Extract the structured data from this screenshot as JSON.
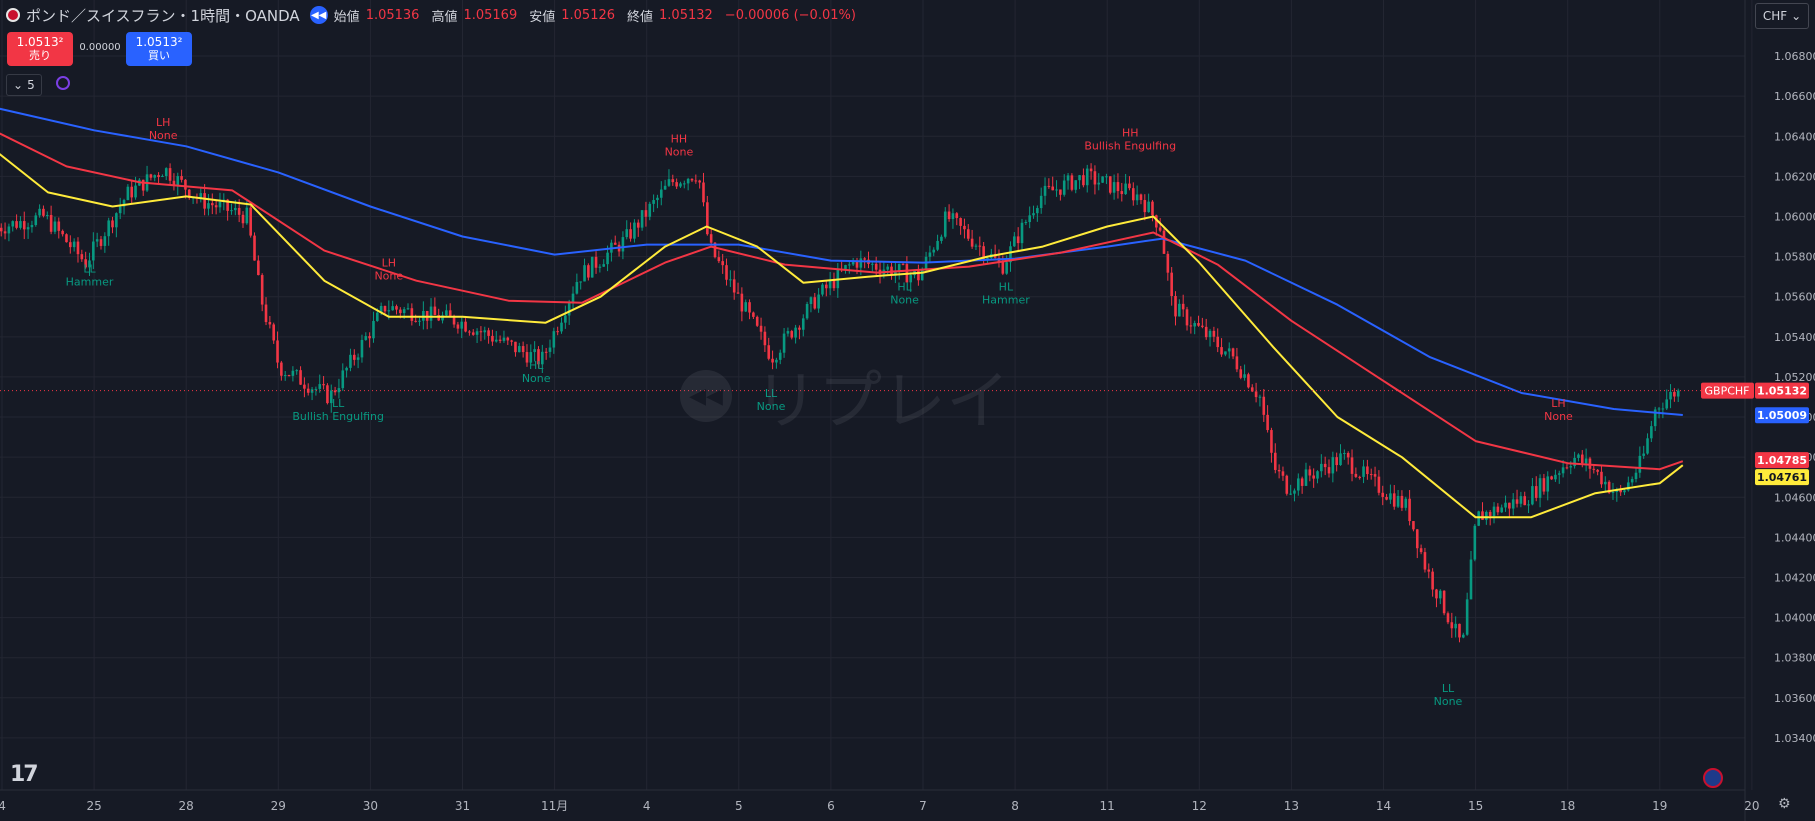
{
  "header": {
    "symbol_title": "ポンド／スイスフラン・1時間・OANDA",
    "open_label": "始値",
    "open": "1.05136",
    "high_label": "高値",
    "high": "1.05169",
    "low_label": "安値",
    "low": "1.05126",
    "close_label": "終値",
    "close": "1.05132",
    "change": "−0.00006 (−0.01%)"
  },
  "trade": {
    "sell_price": "1.0513²",
    "sell_label": "売り",
    "buy_price": "1.0513²",
    "buy_label": "買い",
    "spread": "0.00000"
  },
  "indicator_count": "5",
  "currency_button": "CHF",
  "watermark": "リプレイ",
  "colors": {
    "bull": "#089981",
    "bear": "#f23645",
    "ema_fast": "#ffeb3b",
    "ema_mid": "#f23645",
    "ema_slow": "#2962ff",
    "grid": "#232632",
    "background": "#161a25",
    "axis_text": "#b2b5be"
  },
  "chart_data": {
    "type": "candlestick",
    "symbol": "GBPCHF",
    "ylim": [
      1.0325,
      1.069
    ],
    "y_ticks": [
      "1.03400",
      "1.03600",
      "1.03800",
      "1.04000",
      "1.04200",
      "1.04400",
      "1.04600",
      "1.04800",
      "1.05000",
      "1.05200",
      "1.05400",
      "1.05600",
      "1.05800",
      "1.06000",
      "1.06200",
      "1.06400",
      "1.06600",
      "1.06800"
    ],
    "x_ticks": [
      "4",
      "25",
      "28",
      "29",
      "30",
      "31",
      "11月",
      "4",
      "5",
      "6",
      "7",
      "8",
      "11",
      "12",
      "13",
      "14",
      "15",
      "18",
      "19",
      "20"
    ],
    "price_path": [
      {
        "day": -0.05,
        "price": 1.0594
      },
      {
        "day": 0.5,
        "price": 1.06
      },
      {
        "day": 0.95,
        "price": 1.0577
      },
      {
        "day": 1.4,
        "price": 1.0611
      },
      {
        "day": 1.8,
        "price": 1.0624
      },
      {
        "day": 2.2,
        "price": 1.0608
      },
      {
        "day": 2.7,
        "price": 1.06
      },
      {
        "day": 2.85,
        "price": 1.056
      },
      {
        "day": 3.05,
        "price": 1.0525
      },
      {
        "day": 3.6,
        "price": 1.051
      },
      {
        "day": 4.2,
        "price": 1.0555
      },
      {
        "day": 5.0,
        "price": 1.0548
      },
      {
        "day": 5.9,
        "price": 1.0528
      },
      {
        "day": 6.3,
        "price": 1.057
      },
      {
        "day": 6.8,
        "price": 1.0588
      },
      {
        "day": 7.3,
        "price": 1.0617
      },
      {
        "day": 7.6,
        "price": 1.0622
      },
      {
        "day": 7.72,
        "price": 1.0585
      },
      {
        "day": 8.4,
        "price": 1.053
      },
      {
        "day": 8.9,
        "price": 1.056
      },
      {
        "day": 9.3,
        "price": 1.0578
      },
      {
        "day": 10.0,
        "price": 1.057
      },
      {
        "day": 10.3,
        "price": 1.06
      },
      {
        "day": 10.9,
        "price": 1.0575
      },
      {
        "day": 11.3,
        "price": 1.061
      },
      {
        "day": 11.8,
        "price": 1.062
      },
      {
        "day": 12.4,
        "price": 1.061
      },
      {
        "day": 12.62,
        "price": 1.0595
      },
      {
        "day": 12.75,
        "price": 1.0555
      },
      {
        "day": 13.4,
        "price": 1.053
      },
      {
        "day": 13.7,
        "price": 1.051
      },
      {
        "day": 13.85,
        "price": 1.0475
      },
      {
        "day": 14.0,
        "price": 1.0465
      },
      {
        "day": 14.6,
        "price": 1.048
      },
      {
        "day": 14.9,
        "price": 1.0468
      },
      {
        "day": 15.3,
        "price": 1.0455
      },
      {
        "day": 15.5,
        "price": 1.0425
      },
      {
        "day": 15.9,
        "price": 1.0385
      },
      {
        "day": 16.05,
        "price": 1.045
      },
      {
        "day": 16.6,
        "price": 1.046
      },
      {
        "day": 17.1,
        "price": 1.048
      },
      {
        "day": 17.3,
        "price": 1.0475
      },
      {
        "day": 17.6,
        "price": 1.046
      },
      {
        "day": 17.85,
        "price": 1.0478
      },
      {
        "day": 18.0,
        "price": 1.0505
      },
      {
        "day": 18.22,
        "price": 1.0513
      }
    ],
    "ema_fast": [
      {
        "day": -0.05,
        "price": 1.0632
      },
      {
        "day": 0.5,
        "price": 1.0612
      },
      {
        "day": 1.2,
        "price": 1.0605
      },
      {
        "day": 2.0,
        "price": 1.061
      },
      {
        "day": 2.7,
        "price": 1.0606
      },
      {
        "day": 3.5,
        "price": 1.0568
      },
      {
        "day": 4.2,
        "price": 1.055
      },
      {
        "day": 5.0,
        "price": 1.055
      },
      {
        "day": 5.9,
        "price": 1.0547
      },
      {
        "day": 6.5,
        "price": 1.056
      },
      {
        "day": 7.2,
        "price": 1.0585
      },
      {
        "day": 7.65,
        "price": 1.0595
      },
      {
        "day": 8.2,
        "price": 1.0585
      },
      {
        "day": 8.7,
        "price": 1.0567
      },
      {
        "day": 9.4,
        "price": 1.057
      },
      {
        "day": 10.0,
        "price": 1.0572
      },
      {
        "day": 10.7,
        "price": 1.058
      },
      {
        "day": 11.3,
        "price": 1.0585
      },
      {
        "day": 12.0,
        "price": 1.0595
      },
      {
        "day": 12.5,
        "price": 1.06
      },
      {
        "day": 13.0,
        "price": 1.0577
      },
      {
        "day": 13.8,
        "price": 1.0535
      },
      {
        "day": 14.5,
        "price": 1.05
      },
      {
        "day": 15.2,
        "price": 1.048
      },
      {
        "day": 16.0,
        "price": 1.045
      },
      {
        "day": 16.6,
        "price": 1.045
      },
      {
        "day": 17.3,
        "price": 1.0462
      },
      {
        "day": 18.0,
        "price": 1.0467
      },
      {
        "day": 18.25,
        "price": 1.0476
      }
    ],
    "ema_mid": [
      {
        "day": -0.05,
        "price": 1.0642
      },
      {
        "day": 0.7,
        "price": 1.0625
      },
      {
        "day": 1.5,
        "price": 1.0617
      },
      {
        "day": 2.5,
        "price": 1.0613
      },
      {
        "day": 3.5,
        "price": 1.0583
      },
      {
        "day": 4.5,
        "price": 1.0568
      },
      {
        "day": 5.5,
        "price": 1.0558
      },
      {
        "day": 6.3,
        "price": 1.0557
      },
      {
        "day": 7.2,
        "price": 1.0577
      },
      {
        "day": 7.7,
        "price": 1.0585
      },
      {
        "day": 8.5,
        "price": 1.0576
      },
      {
        "day": 9.5,
        "price": 1.0572
      },
      {
        "day": 10.5,
        "price": 1.0575
      },
      {
        "day": 11.5,
        "price": 1.0582
      },
      {
        "day": 12.5,
        "price": 1.0592
      },
      {
        "day": 13.2,
        "price": 1.0576
      },
      {
        "day": 14.0,
        "price": 1.0548
      },
      {
        "day": 15.0,
        "price": 1.0518
      },
      {
        "day": 16.0,
        "price": 1.0488
      },
      {
        "day": 17.0,
        "price": 1.0477
      },
      {
        "day": 18.0,
        "price": 1.0474
      },
      {
        "day": 18.25,
        "price": 1.0478
      }
    ],
    "ema_slow": [
      {
        "day": -0.05,
        "price": 1.0654
      },
      {
        "day": 1.0,
        "price": 1.0643
      },
      {
        "day": 2.0,
        "price": 1.0635
      },
      {
        "day": 3.0,
        "price": 1.0622
      },
      {
        "day": 4.0,
        "price": 1.0605
      },
      {
        "day": 5.0,
        "price": 1.059
      },
      {
        "day": 6.0,
        "price": 1.0581
      },
      {
        "day": 7.0,
        "price": 1.0586
      },
      {
        "day": 8.0,
        "price": 1.0586
      },
      {
        "day": 9.0,
        "price": 1.0578
      },
      {
        "day": 10.0,
        "price": 1.0577
      },
      {
        "day": 11.0,
        "price": 1.0579
      },
      {
        "day": 12.0,
        "price": 1.0585
      },
      {
        "day": 12.6,
        "price": 1.0589
      },
      {
        "day": 13.5,
        "price": 1.0578
      },
      {
        "day": 14.5,
        "price": 1.0556
      },
      {
        "day": 15.5,
        "price": 1.053
      },
      {
        "day": 16.5,
        "price": 1.0512
      },
      {
        "day": 17.5,
        "price": 1.0504
      },
      {
        "day": 18.25,
        "price": 1.0501
      }
    ],
    "annotations": [
      {
        "top": "LH",
        "bottom": "None",
        "kind": "high",
        "day": 1.75,
        "price": 1.0645
      },
      {
        "top": "LL",
        "bottom": "Hammer",
        "kind": "low",
        "day": 0.95,
        "price": 1.0572
      },
      {
        "top": "LH",
        "bottom": "None",
        "kind": "high",
        "day": 4.2,
        "price": 1.0575
      },
      {
        "top": "LL",
        "bottom": "Bullish Engulfing",
        "kind": "low",
        "day": 3.65,
        "price": 1.0505
      },
      {
        "top": "HL",
        "bottom": "None",
        "kind": "low",
        "day": 5.8,
        "price": 1.0524
      },
      {
        "top": "HH",
        "bottom": "None",
        "kind": "high",
        "day": 7.35,
        "price": 1.0637
      },
      {
        "top": "LL",
        "bottom": "None",
        "kind": "low",
        "day": 8.35,
        "price": 1.051
      },
      {
        "top": "HL",
        "bottom": "None",
        "kind": "low",
        "day": 9.8,
        "price": 1.0563
      },
      {
        "top": "HL",
        "bottom": "Hammer",
        "kind": "low",
        "day": 10.9,
        "price": 1.0563
      },
      {
        "top": "HH",
        "bottom": "Bullish Engulfing",
        "kind": "high",
        "day": 12.25,
        "price": 1.064
      },
      {
        "top": "LL",
        "bottom": "None",
        "kind": "low",
        "day": 15.7,
        "price": 1.0363
      },
      {
        "top": "LH",
        "bottom": "None",
        "kind": "high",
        "day": 16.9,
        "price": 1.0505
      }
    ],
    "price_labels": [
      {
        "text": "GBPCHF",
        "value": 1.05132,
        "color": "#f23645",
        "kind": "symbol"
      },
      {
        "text": "1.05132",
        "value": 1.05132,
        "color": "#f23645",
        "kind": "price"
      },
      {
        "text": "1.05009",
        "value": 1.05009,
        "color": "#2962ff",
        "kind": "price"
      },
      {
        "text": "1.04785",
        "value": 1.04785,
        "color": "#f23645",
        "kind": "price"
      },
      {
        "text": "1.04761",
        "value": 1.04761,
        "color": "#ffeb3b",
        "kind": "price"
      }
    ],
    "last_price": 1.05132
  }
}
